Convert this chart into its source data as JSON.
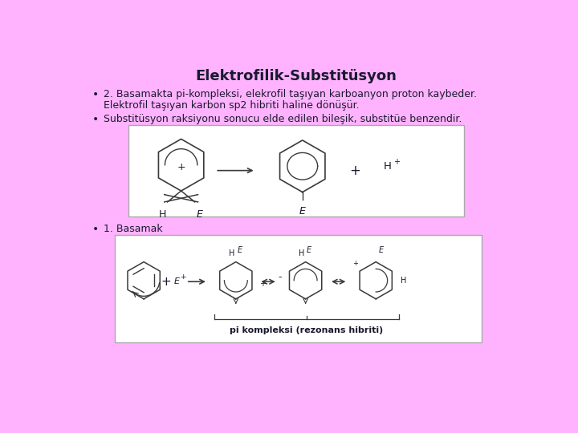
{
  "title": "Elektrofilik-Substitüsyon",
  "bg_color": "#FFB3FF",
  "title_color": "#1a1a2e",
  "bullet1_line1": "2. Basamakta pi-kompleksi, elekrofil taşıyan karboanyon proton kaybeder.",
  "bullet1_line2": "Elektrofil taşıyan karbon sp2 hibriti haline dönüşür.",
  "bullet2": "Substitüsyon raksiyonu sonucu elde edilen bileşik, substitüe benzendir.",
  "bullet3": "1. Basamak",
  "pi_label": "pi kompleksi (rezonans hibriti)",
  "text_color": "#1a1a2e",
  "mol_color": "#3a3a3a",
  "box_face": "#ffffff",
  "box_edge": "#aaaaaa"
}
